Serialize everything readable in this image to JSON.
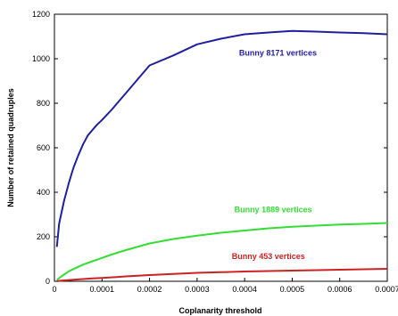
{
  "chart_data": {
    "type": "line",
    "xlabel": "Coplanarity threshold",
    "ylabel": "Number of retained quadruples",
    "xlim": [
      0,
      0.0007
    ],
    "ylim": [
      0,
      1200
    ],
    "x_ticks": [
      "0",
      "0.0001",
      "0.0002",
      "0.0003",
      "0.0004",
      "0.0005",
      "0.0006",
      "0.0007"
    ],
    "y_ticks": [
      "0",
      "200",
      "400",
      "600",
      "800",
      "1000",
      "1200"
    ],
    "grid": false,
    "series": [
      {
        "name": "Bunny 8171 vertices",
        "color": "#1f1fa0",
        "x": [
          5e-06,
          1e-05,
          2e-05,
          3e-05,
          4e-05,
          5e-05,
          6e-05,
          7e-05,
          8e-05,
          9e-05,
          0.0001,
          0.00012,
          0.00014,
          0.00016,
          0.00018,
          0.0002,
          0.00025,
          0.0003,
          0.00035,
          0.0004,
          0.00045,
          0.0005,
          0.00055,
          0.0006,
          0.00065,
          0.0007
        ],
        "y": [
          155,
          260,
          360,
          440,
          510,
          565,
          615,
          655,
          680,
          705,
          725,
          770,
          820,
          870,
          920,
          970,
          1015,
          1065,
          1090,
          1110,
          1118,
          1125,
          1122,
          1118,
          1115,
          1110
        ]
      },
      {
        "name": "Bunny 1889 vertices",
        "color": "#33dd33",
        "x": [
          5e-06,
          1e-05,
          2e-05,
          3e-05,
          4e-05,
          5e-05,
          6e-05,
          8e-05,
          0.0001,
          0.00012,
          0.00015,
          0.0002,
          0.00025,
          0.0003,
          0.00035,
          0.0004,
          0.00045,
          0.0005,
          0.00055,
          0.0006,
          0.00065,
          0.0007
        ],
        "y": [
          5,
          15,
          30,
          45,
          55,
          65,
          75,
          90,
          105,
          120,
          140,
          170,
          190,
          205,
          218,
          228,
          238,
          245,
          250,
          255,
          258,
          262
        ]
      },
      {
        "name": "Bunny 453 vertices",
        "color": "#cc2222",
        "x": [
          5e-06,
          1e-05,
          2e-05,
          4e-05,
          6e-05,
          8e-05,
          0.0001,
          0.00015,
          0.0002,
          0.00025,
          0.0003,
          0.00035,
          0.0004,
          0.00045,
          0.0005,
          0.00055,
          0.0006,
          0.00065,
          0.0007
        ],
        "y": [
          0,
          2,
          4,
          7,
          10,
          13,
          15,
          22,
          28,
          33,
          38,
          41,
          44,
          46,
          48,
          50,
          52,
          54,
          56
        ]
      }
    ]
  }
}
